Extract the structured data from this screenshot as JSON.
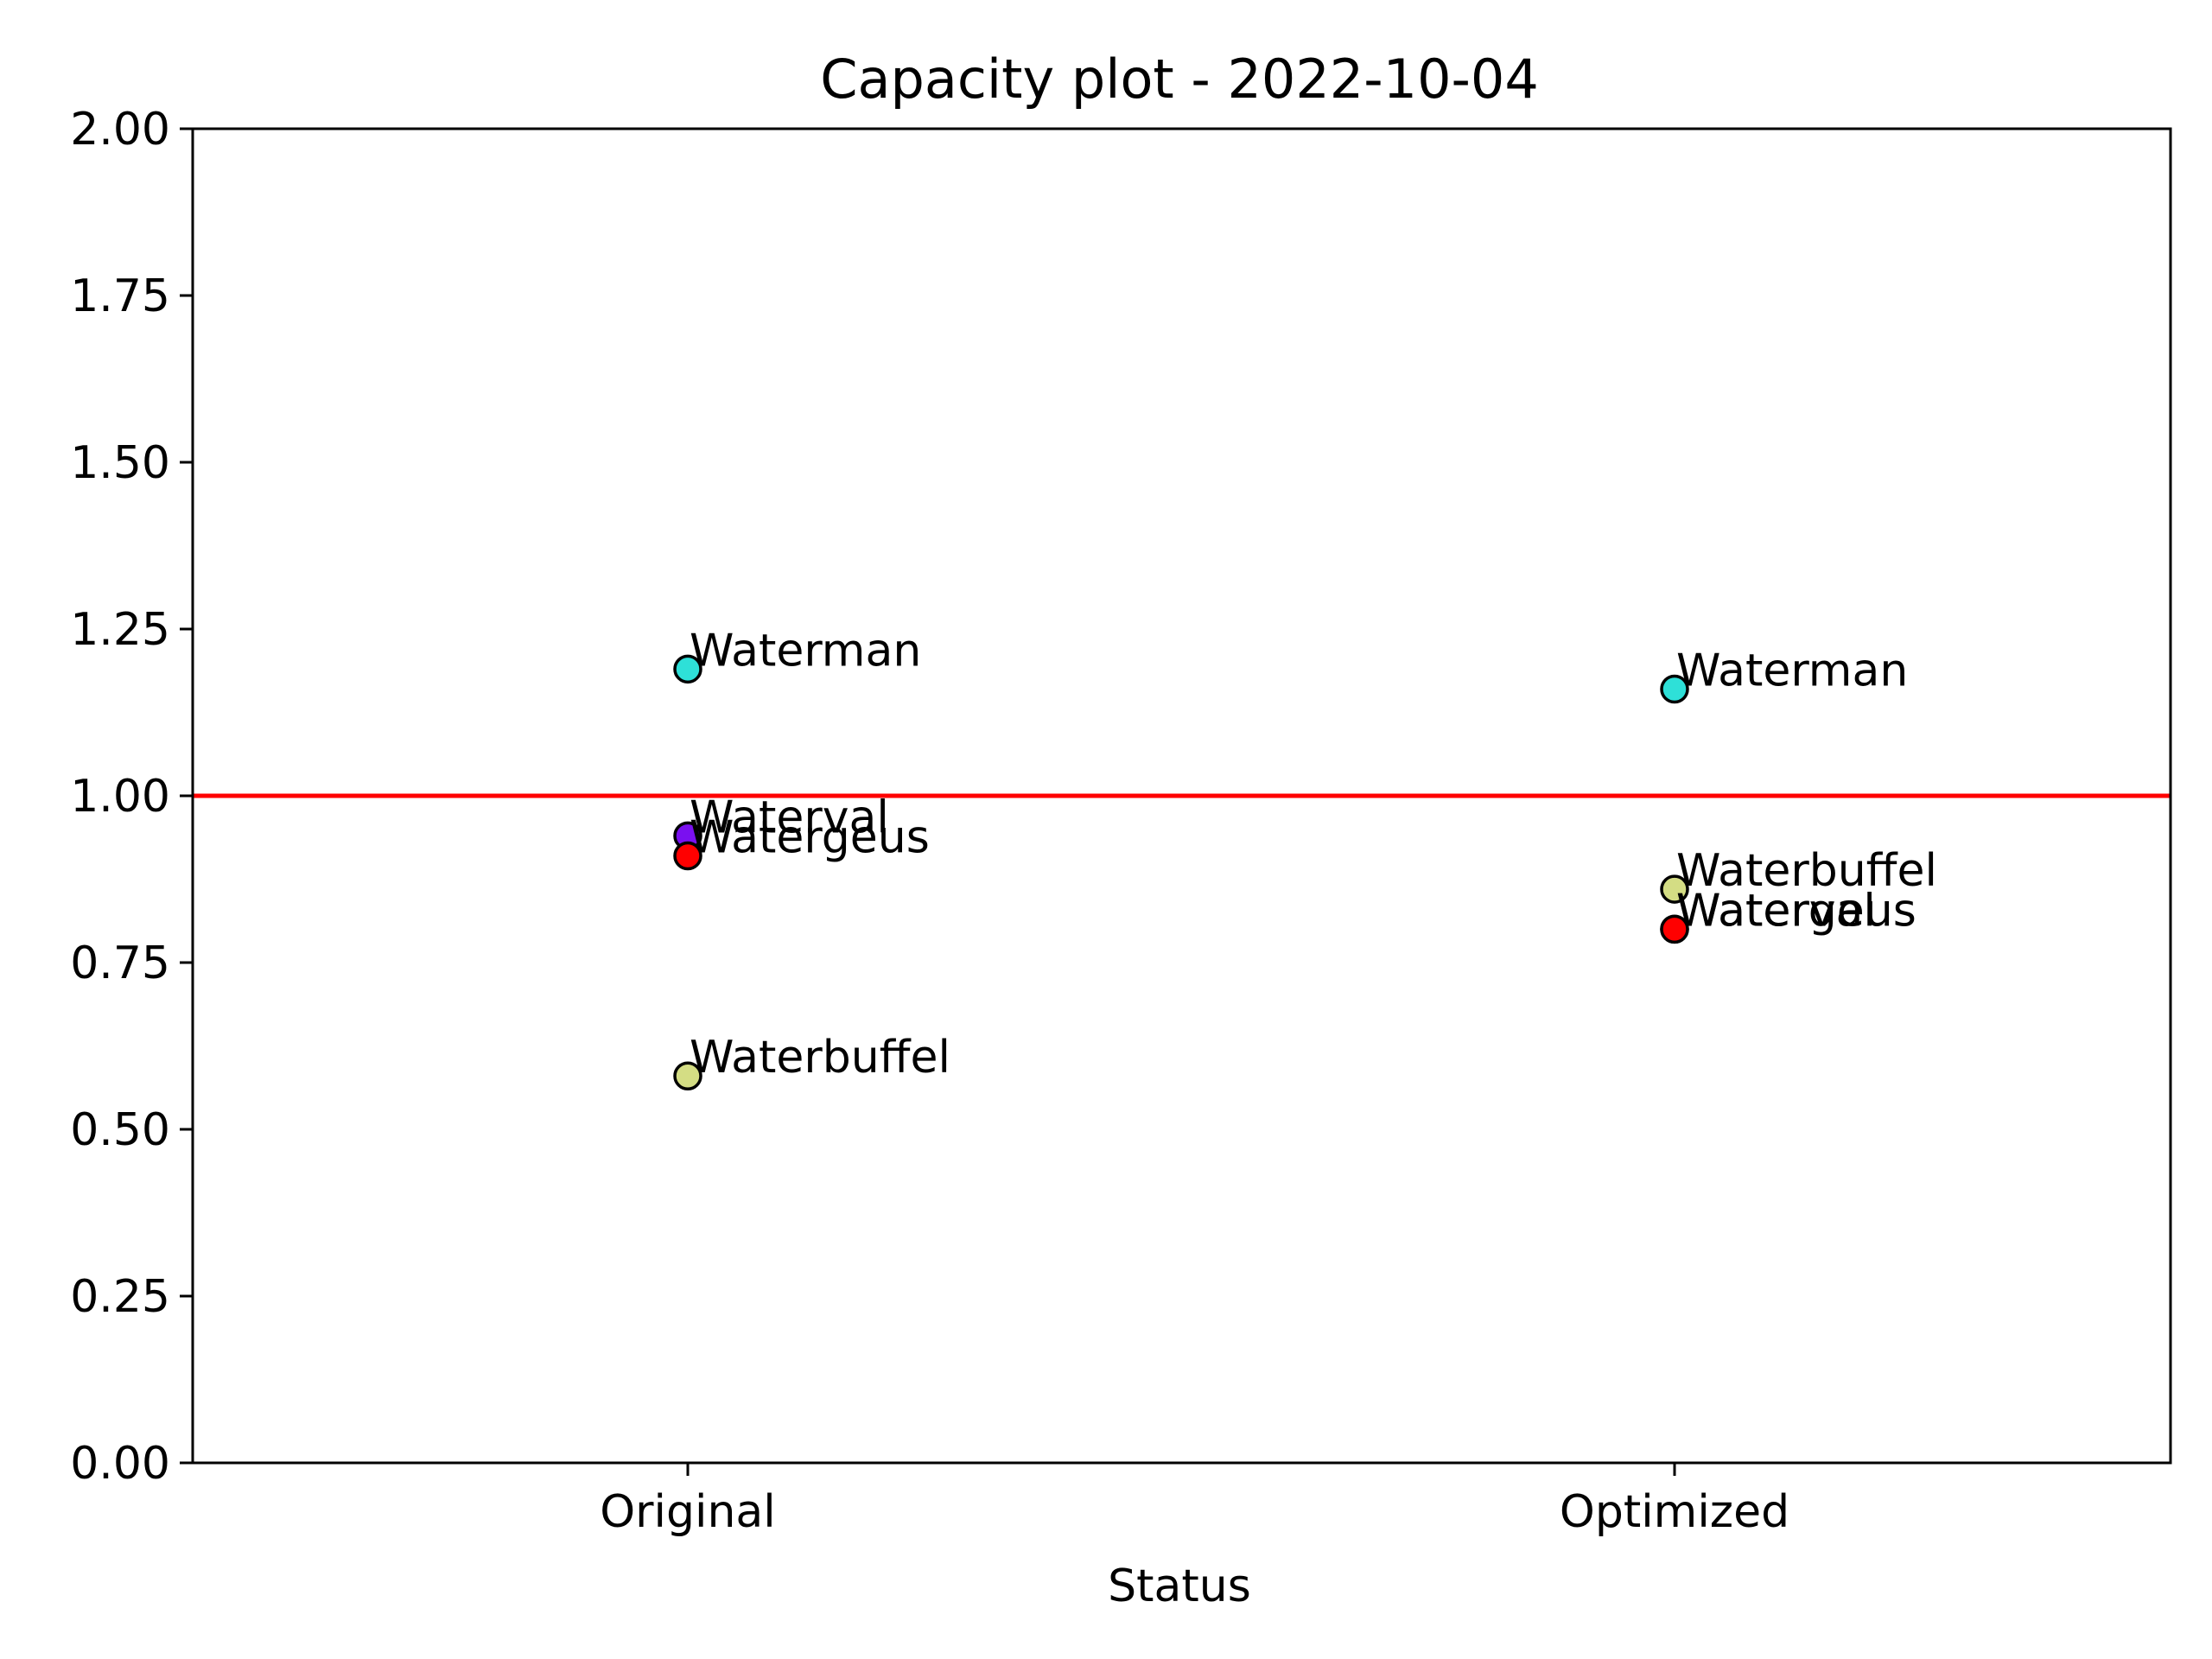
{
  "chart_data": {
    "type": "scatter",
    "title": "Capacity plot - 2022-10-04",
    "xlabel": "Status",
    "ylabel": "",
    "categories": [
      "Original",
      "Optimized"
    ],
    "ylim": [
      0,
      2
    ],
    "yticks": [
      "0.00",
      "0.25",
      "0.50",
      "0.75",
      "1.00",
      "1.25",
      "1.50",
      "1.75",
      "2.00"
    ],
    "grid": false,
    "reference_line": {
      "y": 1.0,
      "color": "#ff0000"
    },
    "points": [
      {
        "category": "Original",
        "y": 1.19,
        "label": "Waterman",
        "color": "#2ee0d8"
      },
      {
        "category": "Original",
        "y": 0.94,
        "label": "Waterval",
        "color": "#7a10f0"
      },
      {
        "category": "Original",
        "y": 0.91,
        "label": "Watergeus",
        "color": "#ff0000"
      },
      {
        "category": "Original",
        "y": 0.58,
        "label": "Waterbuffel",
        "color": "#d4dd84"
      },
      {
        "category": "Optimized",
        "y": 1.16,
        "label": "Waterman",
        "color": "#2ee0d8"
      },
      {
        "category": "Optimized",
        "y": 0.86,
        "label": "Waterbuffel",
        "color": "#d4dd84"
      },
      {
        "category": "Optimized",
        "y": 0.8,
        "label": "Waterval",
        "color": "#7a10f0"
      },
      {
        "category": "Optimized",
        "y": 0.8,
        "label": "Watergeus",
        "color": "#ff0000"
      }
    ]
  }
}
